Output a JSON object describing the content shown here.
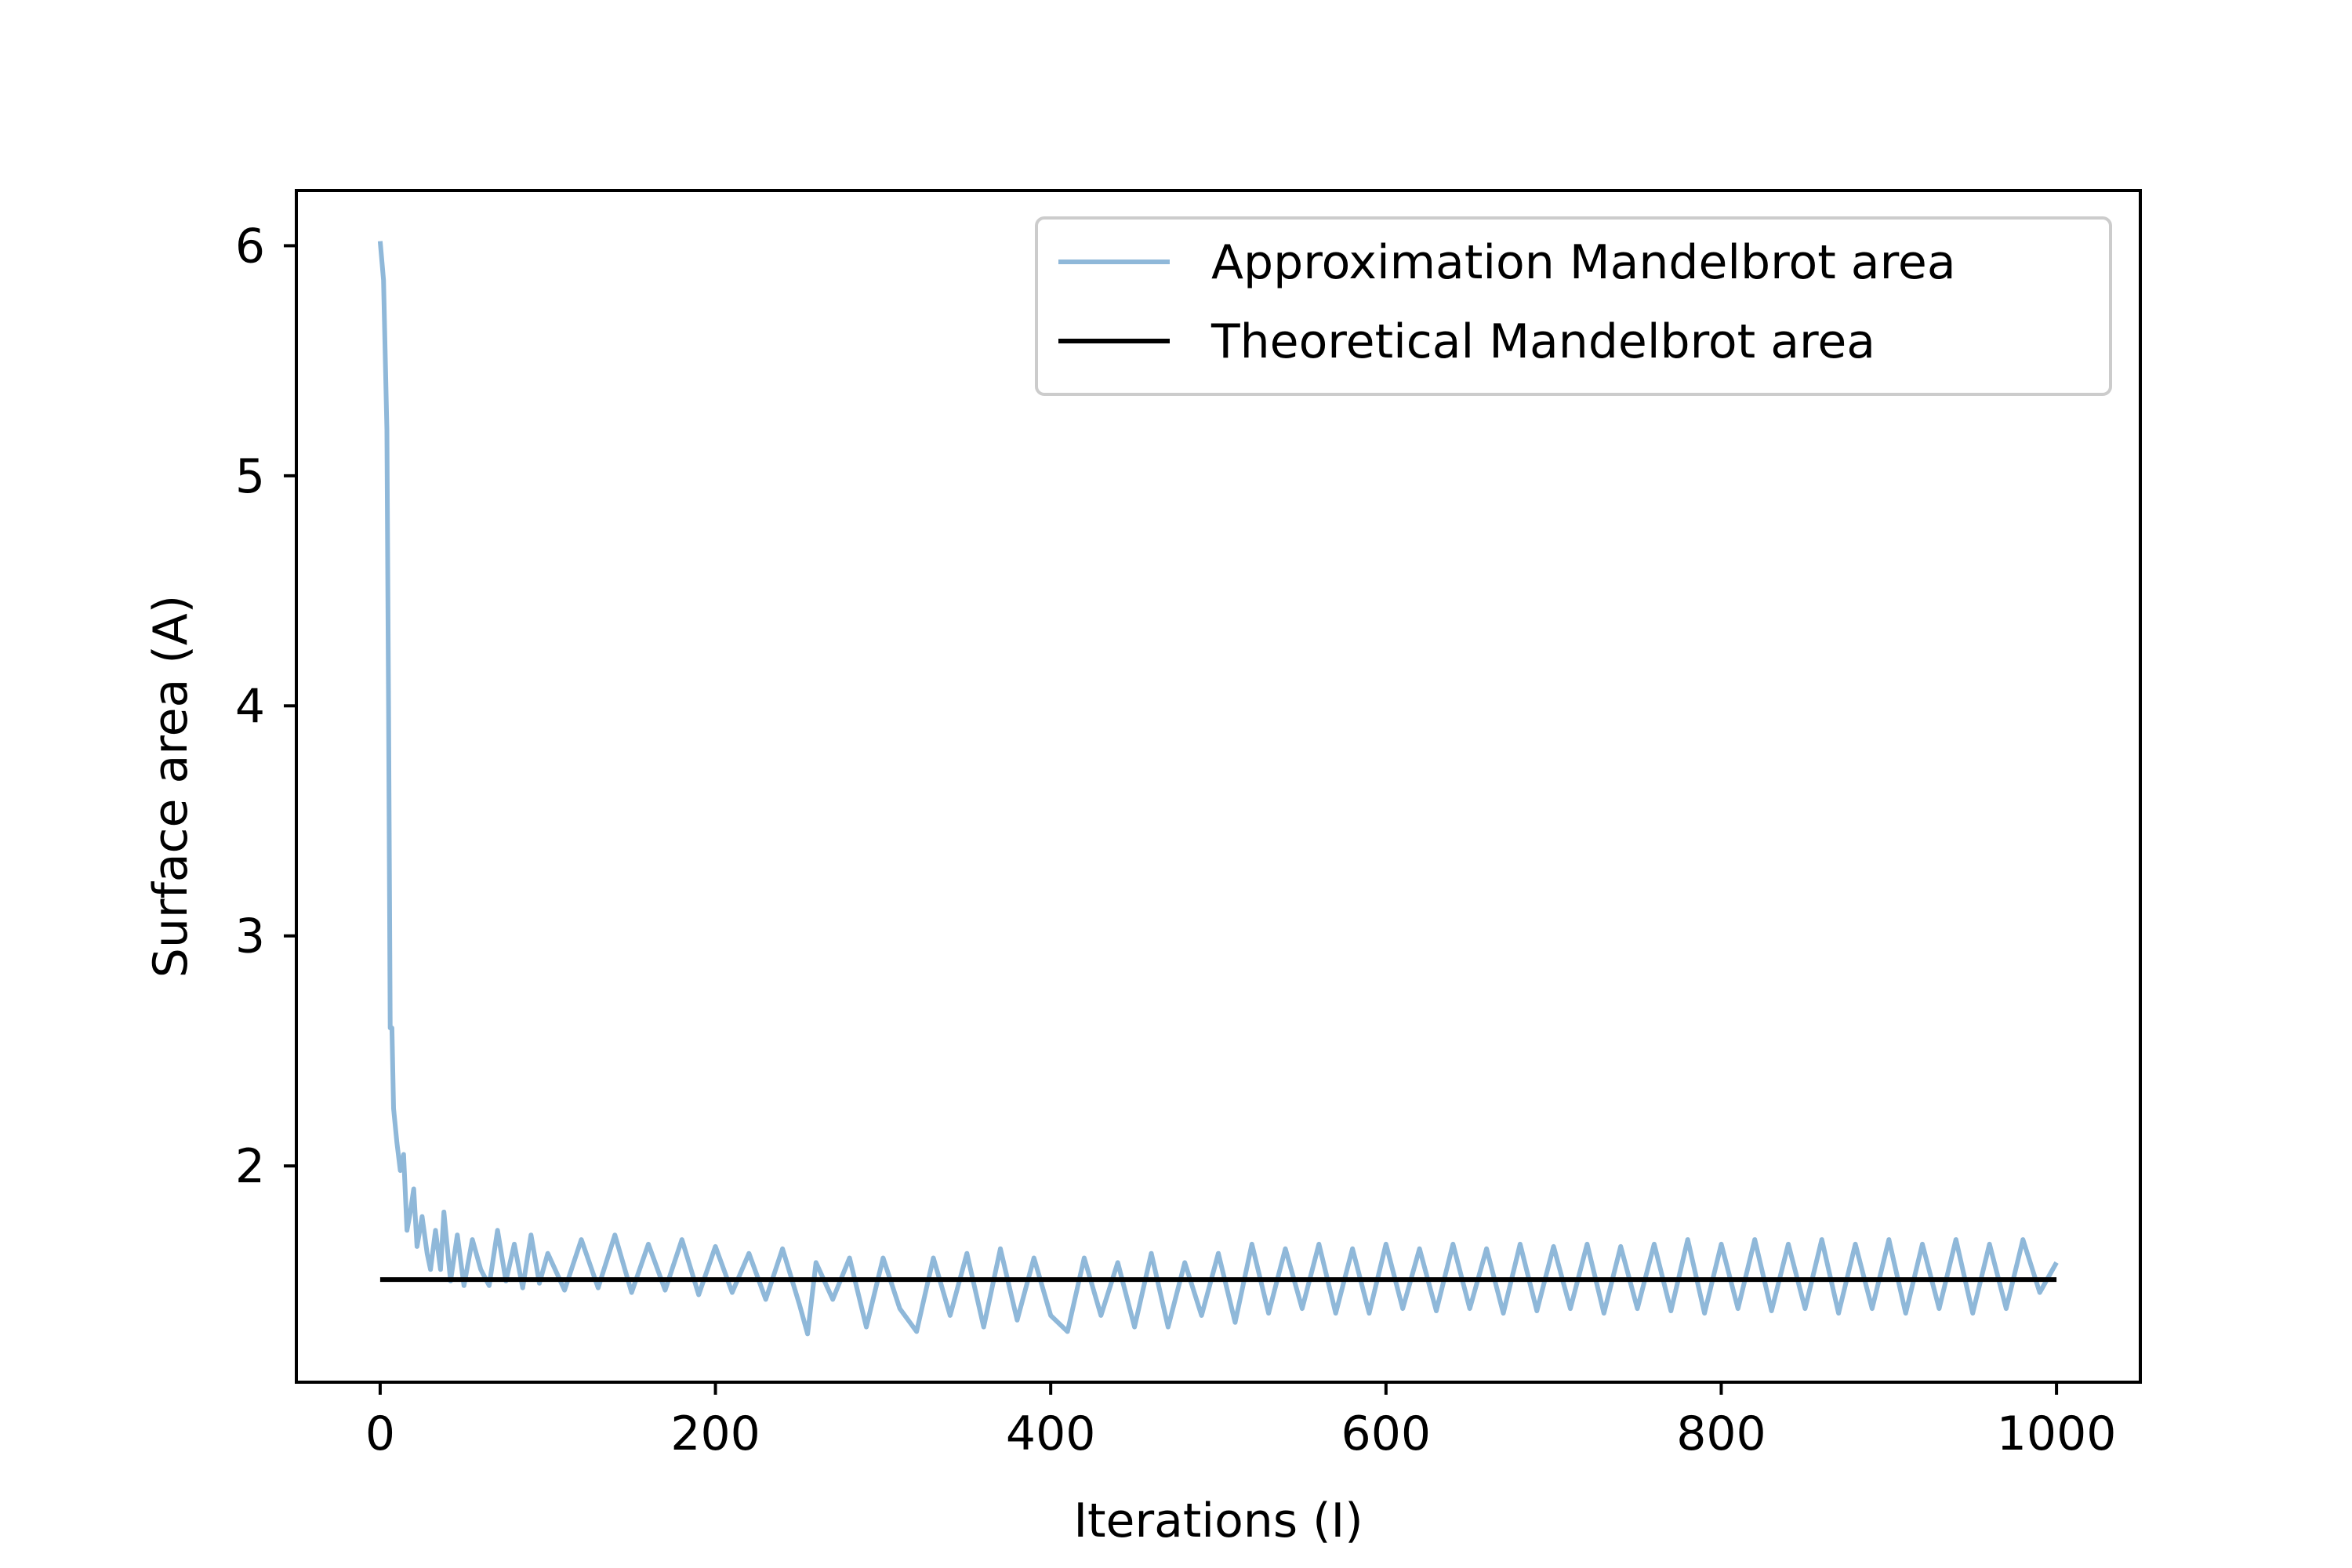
{
  "chart_data": {
    "type": "line",
    "title": "",
    "xlabel": "Iterations (I)",
    "ylabel": "Surface area (A)",
    "xlim": [
      -50,
      1050
    ],
    "ylim": [
      1.06,
      6.24
    ],
    "x_ticks": [
      0,
      200,
      400,
      600,
      800,
      1000
    ],
    "y_ticks": [
      2,
      3,
      4,
      5,
      6
    ],
    "grid": false,
    "legend_position": "top-right",
    "series": [
      {
        "name": "Approximation Mandelbrot area",
        "color": "#8fb8d9",
        "points": [
          [
            0,
            6.02
          ],
          [
            2,
            5.85
          ],
          [
            4,
            5.2
          ],
          [
            5,
            4.0
          ],
          [
            6,
            2.6
          ],
          [
            7,
            2.6
          ],
          [
            8,
            2.25
          ],
          [
            10,
            2.1
          ],
          [
            12,
            1.98
          ],
          [
            14,
            2.05
          ],
          [
            16,
            1.72
          ],
          [
            18,
            1.8
          ],
          [
            20,
            1.9
          ],
          [
            22,
            1.65
          ],
          [
            25,
            1.78
          ],
          [
            28,
            1.62
          ],
          [
            30,
            1.55
          ],
          [
            33,
            1.72
          ],
          [
            36,
            1.55
          ],
          [
            38,
            1.8
          ],
          [
            42,
            1.5
          ],
          [
            46,
            1.7
          ],
          [
            50,
            1.48
          ],
          [
            55,
            1.68
          ],
          [
            60,
            1.55
          ],
          [
            65,
            1.48
          ],
          [
            70,
            1.72
          ],
          [
            75,
            1.5
          ],
          [
            80,
            1.66
          ],
          [
            85,
            1.47
          ],
          [
            90,
            1.7
          ],
          [
            95,
            1.49
          ],
          [
            100,
            1.62
          ],
          [
            110,
            1.46
          ],
          [
            120,
            1.68
          ],
          [
            130,
            1.47
          ],
          [
            140,
            1.7
          ],
          [
            150,
            1.45
          ],
          [
            160,
            1.66
          ],
          [
            170,
            1.46
          ],
          [
            180,
            1.68
          ],
          [
            190,
            1.44
          ],
          [
            200,
            1.65
          ],
          [
            210,
            1.45
          ],
          [
            220,
            1.62
          ],
          [
            230,
            1.42
          ],
          [
            240,
            1.64
          ],
          [
            250,
            1.4
          ],
          [
            255,
            1.27
          ],
          [
            260,
            1.58
          ],
          [
            270,
            1.42
          ],
          [
            280,
            1.6
          ],
          [
            290,
            1.3
          ],
          [
            300,
            1.6
          ],
          [
            310,
            1.38
          ],
          [
            320,
            1.28
          ],
          [
            330,
            1.6
          ],
          [
            340,
            1.35
          ],
          [
            350,
            1.62
          ],
          [
            360,
            1.3
          ],
          [
            370,
            1.64
          ],
          [
            380,
            1.33
          ],
          [
            390,
            1.6
          ],
          [
            400,
            1.35
          ],
          [
            410,
            1.28
          ],
          [
            420,
            1.6
          ],
          [
            430,
            1.35
          ],
          [
            440,
            1.58
          ],
          [
            450,
            1.3
          ],
          [
            460,
            1.62
          ],
          [
            470,
            1.3
          ],
          [
            480,
            1.58
          ],
          [
            490,
            1.35
          ],
          [
            500,
            1.62
          ],
          [
            510,
            1.32
          ],
          [
            520,
            1.66
          ],
          [
            530,
            1.36
          ],
          [
            540,
            1.64
          ],
          [
            550,
            1.38
          ],
          [
            560,
            1.66
          ],
          [
            570,
            1.36
          ],
          [
            580,
            1.64
          ],
          [
            590,
            1.36
          ],
          [
            600,
            1.66
          ],
          [
            610,
            1.38
          ],
          [
            620,
            1.64
          ],
          [
            630,
            1.37
          ],
          [
            640,
            1.66
          ],
          [
            650,
            1.38
          ],
          [
            660,
            1.64
          ],
          [
            670,
            1.36
          ],
          [
            680,
            1.66
          ],
          [
            690,
            1.37
          ],
          [
            700,
            1.65
          ],
          [
            710,
            1.38
          ],
          [
            720,
            1.66
          ],
          [
            730,
            1.36
          ],
          [
            740,
            1.65
          ],
          [
            750,
            1.38
          ],
          [
            760,
            1.66
          ],
          [
            770,
            1.37
          ],
          [
            780,
            1.68
          ],
          [
            790,
            1.36
          ],
          [
            800,
            1.66
          ],
          [
            810,
            1.38
          ],
          [
            820,
            1.68
          ],
          [
            830,
            1.37
          ],
          [
            840,
            1.66
          ],
          [
            850,
            1.38
          ],
          [
            860,
            1.68
          ],
          [
            870,
            1.36
          ],
          [
            880,
            1.66
          ],
          [
            890,
            1.38
          ],
          [
            900,
            1.68
          ],
          [
            910,
            1.36
          ],
          [
            920,
            1.66
          ],
          [
            930,
            1.38
          ],
          [
            940,
            1.68
          ],
          [
            950,
            1.36
          ],
          [
            960,
            1.66
          ],
          [
            970,
            1.38
          ],
          [
            980,
            1.68
          ],
          [
            990,
            1.45
          ],
          [
            1000,
            1.58
          ]
        ]
      },
      {
        "name": "Theoretical Mandelbrot area",
        "color": "#000000",
        "x": [
          0,
          1000
        ],
        "y": [
          1.506,
          1.506
        ]
      }
    ]
  }
}
